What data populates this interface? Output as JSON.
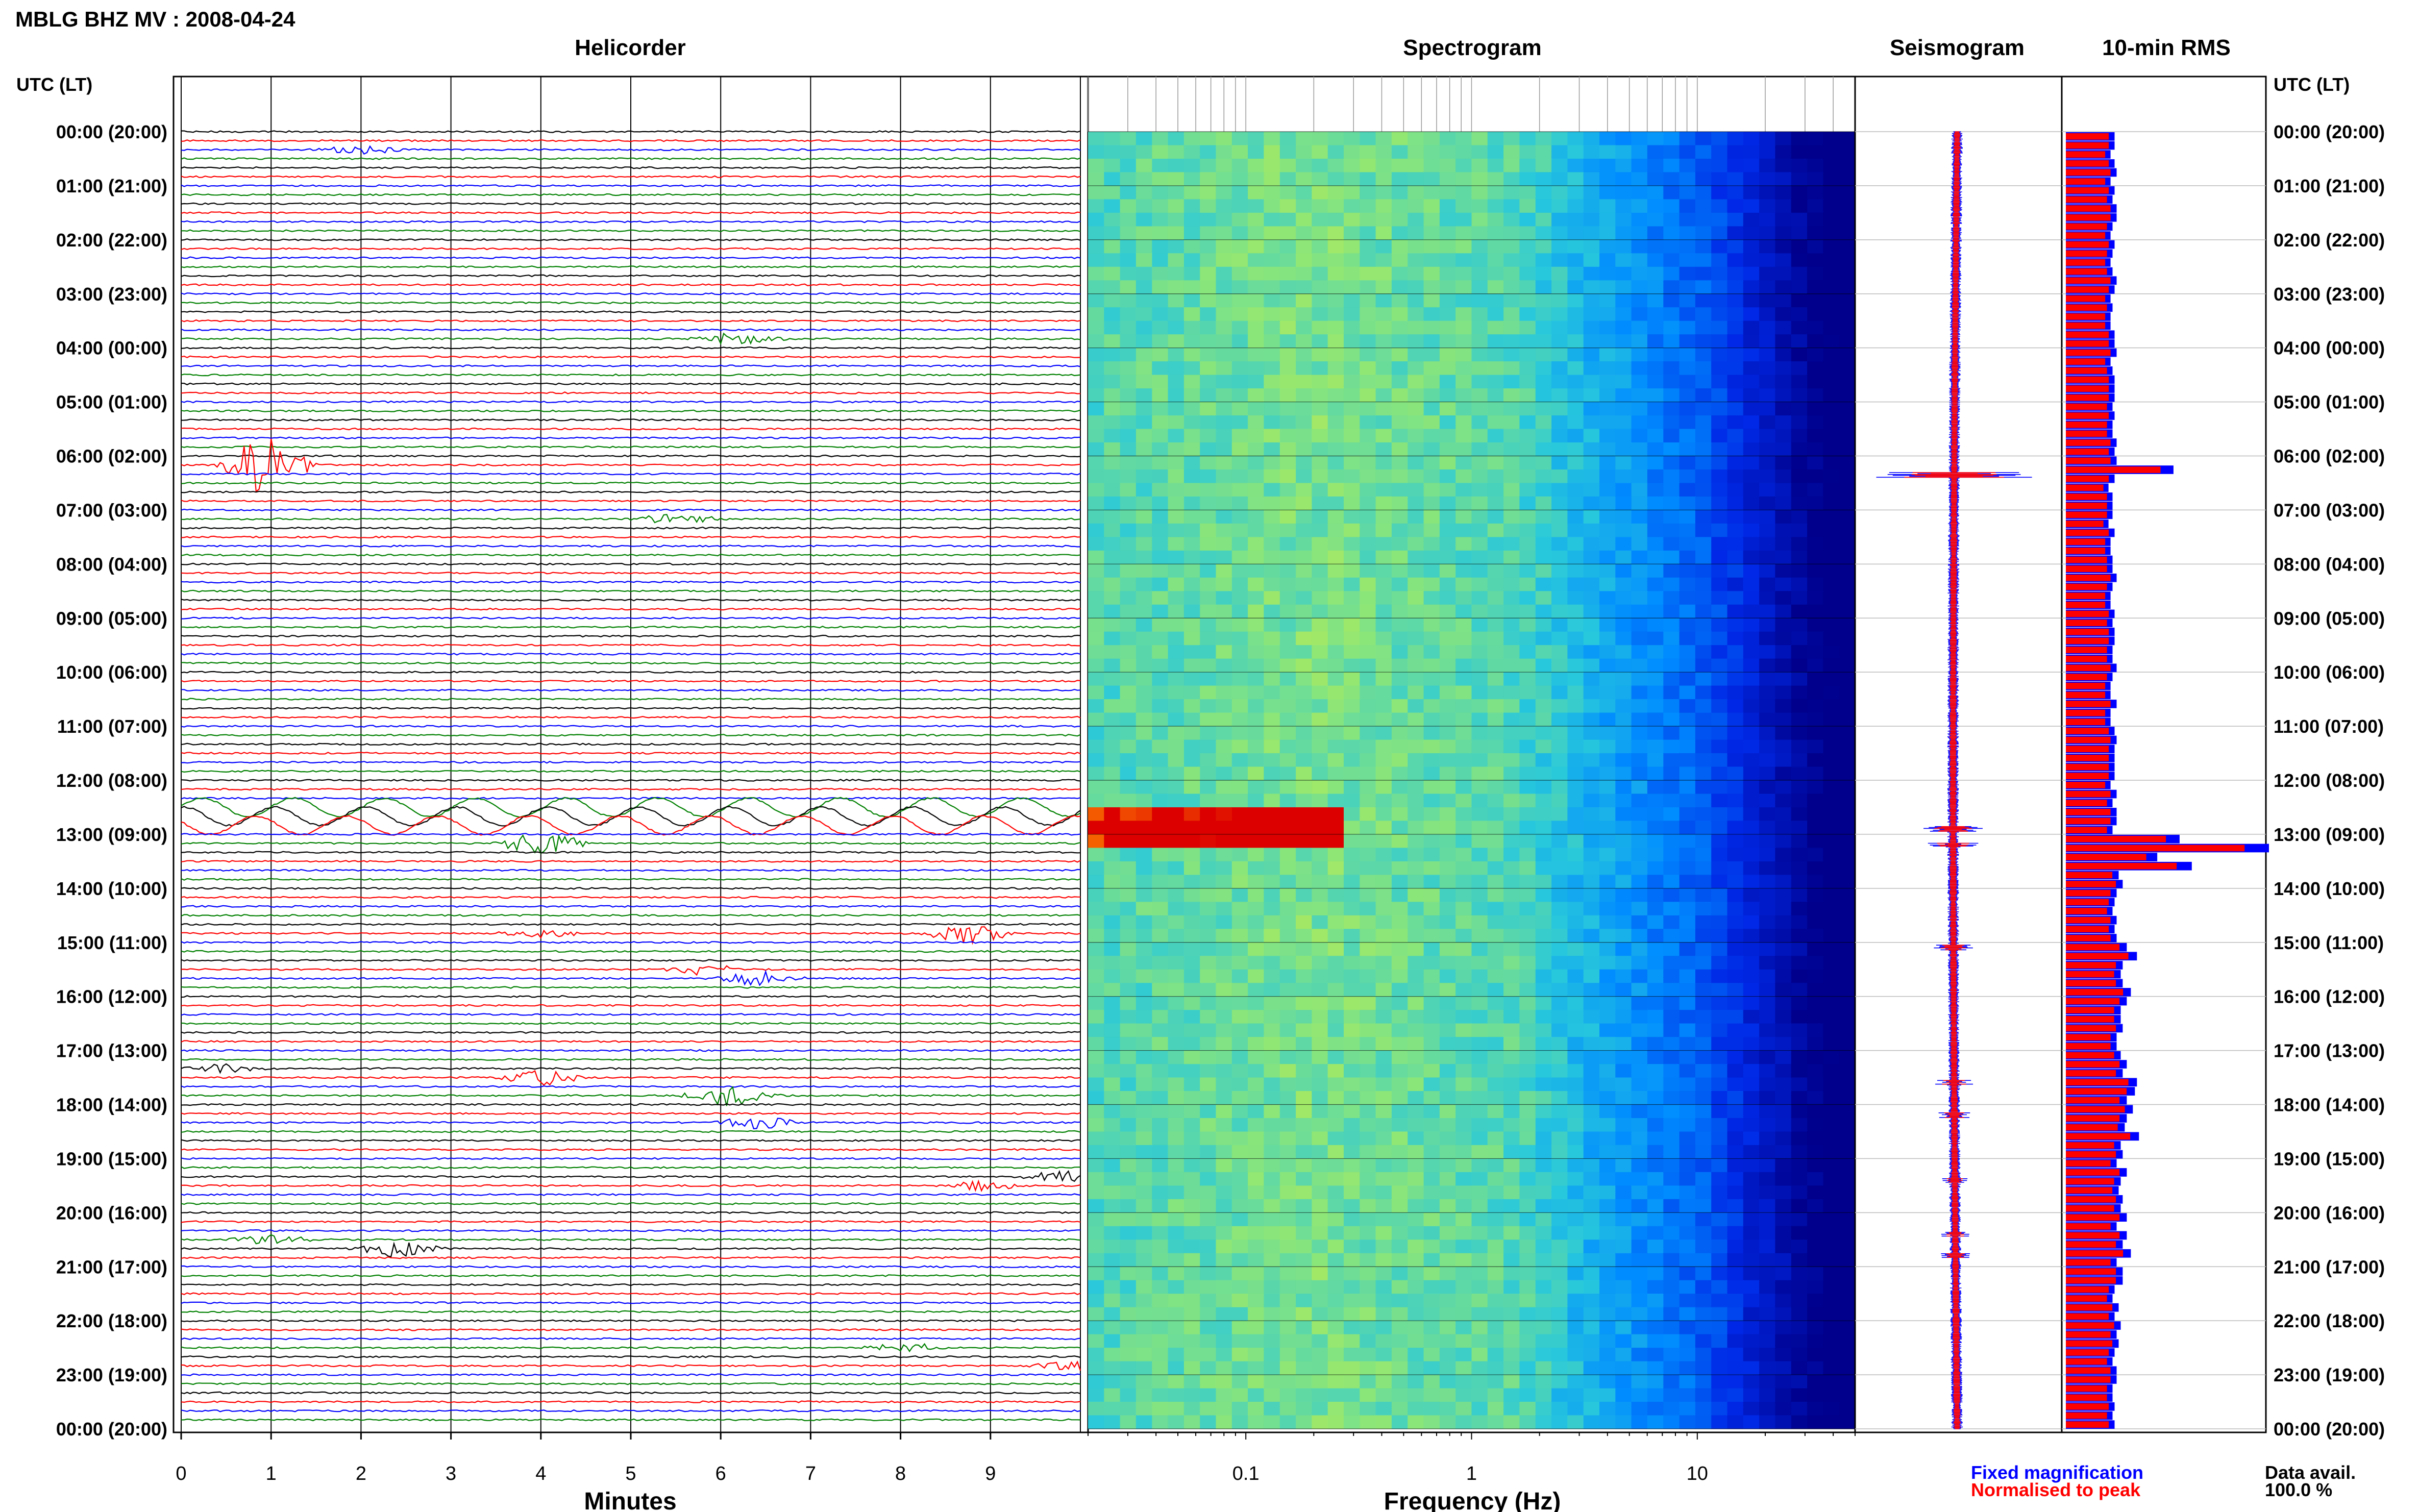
{
  "header": {
    "station_title": "MBLG BHZ MV : 2008-04-24",
    "utc_lt_label": "UTC (LT)"
  },
  "panels": {
    "helicorder_title": "Helicorder",
    "spectrogram_title": "Spectrogram",
    "seismogram_title": "Seismogram",
    "rms_title": "10-min RMS"
  },
  "legend": {
    "fixed": "Fixed magnification",
    "normalised": "Normalised to peak",
    "fixed_color": "#0000ff",
    "normalised_color": "#ff0000"
  },
  "data_availability": {
    "label": "Data avail.",
    "value": "100.0 %"
  },
  "chart_data": [
    {
      "type": "line",
      "title": "Helicorder",
      "xlabel": "Minutes",
      "x_ticks": [
        "0",
        "1",
        "2",
        "3",
        "4",
        "5",
        "6",
        "7",
        "8",
        "9"
      ],
      "xlim": [
        0,
        10
      ],
      "row_labels": [
        "00:00 (20:00)",
        "01:00 (21:00)",
        "02:00 (22:00)",
        "03:00 (23:00)",
        "04:00 (00:00)",
        "05:00 (01:00)",
        "06:00 (02:00)",
        "07:00 (03:00)",
        "08:00 (04:00)",
        "09:00 (05:00)",
        "10:00 (06:00)",
        "11:00 (07:00)",
        "12:00 (08:00)",
        "13:00 (09:00)",
        "14:00 (10:00)",
        "15:00 (11:00)",
        "16:00 (12:00)",
        "17:00 (13:00)",
        "18:00 (14:00)",
        "19:00 (15:00)",
        "20:00 (16:00)",
        "21:00 (17:00)",
        "22:00 (18:00)",
        "23:00 (19:00)",
        "00:00 (20:00)"
      ],
      "trace_colors": [
        "#000000",
        "#ff0000",
        "#0000ff",
        "#008000"
      ],
      "grid": true,
      "events": [
        {
          "hour": 0.3,
          "minute": 2.0,
          "color": "#000000",
          "amp": 0.5
        },
        {
          "hour": 6.2,
          "minute": 0.95,
          "color": "#0000ff",
          "amp": 3.0
        },
        {
          "hour": 3.8,
          "minute": 6.2,
          "color": "#008000",
          "amp": 0.6
        },
        {
          "hour": 7.2,
          "minute": 5.5,
          "color": "#008000",
          "amp": 0.5
        },
        {
          "hour": 13.1,
          "minute": 4.0,
          "color": "#008000",
          "amp": 1.2
        },
        {
          "hour": 14.8,
          "minute": 4.0,
          "color": "#ff0000",
          "amp": 0.4
        },
        {
          "hour": 14.9,
          "minute": 8.75,
          "color": "#0000ff",
          "amp": 1.0
        },
        {
          "hour": 15.5,
          "minute": 5.8,
          "color": "#ff0000",
          "amp": 0.5
        },
        {
          "hour": 15.6,
          "minute": 6.4,
          "color": "#0000ff",
          "amp": 0.7
        },
        {
          "hour": 17.4,
          "minute": 0.5,
          "color": "#000000",
          "amp": 0.4
        },
        {
          "hour": 17.5,
          "minute": 4.0,
          "color": "#ff0000",
          "amp": 0.8
        },
        {
          "hour": 17.9,
          "minute": 6.1,
          "color": "#000000",
          "amp": 1.1
        },
        {
          "hour": 18.3,
          "minute": 6.4,
          "color": "#008000",
          "amp": 0.7
        },
        {
          "hour": 19.4,
          "minute": 9.8,
          "color": "#ff0000",
          "amp": 0.6
        },
        {
          "hour": 19.5,
          "minute": 8.9,
          "color": "#0000ff",
          "amp": 0.5
        },
        {
          "hour": 20.5,
          "minute": 1.0,
          "color": "#008000",
          "amp": 0.5
        },
        {
          "hour": 20.6,
          "minute": 2.4,
          "color": "#000000",
          "amp": 0.9
        },
        {
          "hour": 22.5,
          "minute": 8.0,
          "color": "#008000",
          "amp": 0.5
        },
        {
          "hour": 22.9,
          "minute": 9.9,
          "color": "#ff0000",
          "amp": 0.5
        }
      ]
    },
    {
      "type": "heatmap",
      "title": "Spectrogram",
      "xlabel": "Frequency (Hz)",
      "x_scale": "log",
      "x_ticks": [
        "0.1",
        "1",
        "10"
      ],
      "xlim": [
        0.02,
        50
      ],
      "grid": true
    },
    {
      "type": "line",
      "title": "Seismogram",
      "series": [
        {
          "name": "Fixed magnification",
          "color": "#0000ff"
        },
        {
          "name": "Normalised to peak",
          "color": "#ff0000"
        }
      ],
      "spikes": [
        {
          "hour": 6.35,
          "amp": 3.0
        },
        {
          "hour": 12.9,
          "amp": 1.2
        },
        {
          "hour": 13.2,
          "amp": 0.9
        },
        {
          "hour": 15.1,
          "amp": 0.8
        },
        {
          "hour": 17.6,
          "amp": 0.6
        },
        {
          "hour": 18.2,
          "amp": 0.5
        },
        {
          "hour": 19.4,
          "amp": 0.4
        },
        {
          "hour": 20.4,
          "amp": 0.5
        },
        {
          "hour": 20.8,
          "amp": 0.6
        }
      ]
    },
    {
      "type": "bar",
      "title": "10-min RMS",
      "orientation": "horizontal",
      "bin_minutes": 10,
      "hours": 24,
      "series": [
        {
          "name": "Fixed magnification",
          "color": "#0000ff"
        },
        {
          "name": "Normalised to peak",
          "color": "#ff0000"
        }
      ],
      "relative_values": [
        0.24,
        0.24,
        0.22,
        0.24,
        0.25,
        0.22,
        0.24,
        0.23,
        0.25,
        0.25,
        0.23,
        0.22,
        0.24,
        0.23,
        0.22,
        0.23,
        0.25,
        0.24,
        0.22,
        0.23,
        0.22,
        0.22,
        0.24,
        0.24,
        0.25,
        0.22,
        0.23,
        0.24,
        0.24,
        0.24,
        0.23,
        0.24,
        0.23,
        0.23,
        0.25,
        0.24,
        0.25,
        0.53,
        0.24,
        0.21,
        0.23,
        0.23,
        0.23,
        0.21,
        0.24,
        0.22,
        0.22,
        0.23,
        0.23,
        0.25,
        0.23,
        0.22,
        0.22,
        0.24,
        0.23,
        0.24,
        0.24,
        0.23,
        0.23,
        0.25,
        0.23,
        0.22,
        0.22,
        0.25,
        0.22,
        0.22,
        0.24,
        0.25,
        0.24,
        0.24,
        0.24,
        0.24,
        0.22,
        0.25,
        0.23,
        0.25,
        0.25,
        0.23,
        0.56,
        1.0,
        0.45,
        0.62,
        0.26,
        0.28,
        0.25,
        0.24,
        0.23,
        0.25,
        0.24,
        0.25,
        0.3,
        0.35,
        0.28,
        0.27,
        0.28,
        0.32,
        0.3,
        0.27,
        0.27,
        0.28,
        0.25,
        0.25,
        0.27,
        0.3,
        0.28,
        0.35,
        0.34,
        0.3,
        0.33,
        0.3,
        0.29,
        0.36,
        0.27,
        0.28,
        0.25,
        0.3,
        0.27,
        0.26,
        0.28,
        0.27,
        0.3,
        0.25,
        0.3,
        0.28,
        0.32,
        0.25,
        0.28,
        0.28,
        0.24,
        0.23,
        0.26,
        0.24,
        0.27,
        0.25,
        0.26,
        0.24,
        0.23,
        0.25,
        0.25,
        0.23,
        0.23,
        0.24,
        0.23,
        0.24
      ]
    }
  ]
}
